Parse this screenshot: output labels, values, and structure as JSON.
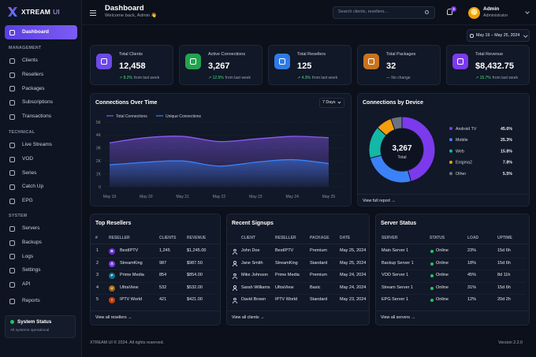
{
  "brand": {
    "name": "XTREAM",
    "suffix": "UI"
  },
  "nav": {
    "active": "Dashboard",
    "sections": [
      {
        "title": "MANAGEMENT",
        "items": [
          "Clients",
          "Resellers",
          "Packages",
          "Subscriptions",
          "Transactions"
        ]
      },
      {
        "title": "TECHNICAL",
        "items": [
          "Live Streams",
          "VOD",
          "Series",
          "Catch Up",
          "EPG"
        ]
      },
      {
        "title": "SYSTEM",
        "items": [
          "Servers",
          "Backups",
          "Logs",
          "Settings",
          "API"
        ]
      }
    ],
    "reports": "Reports"
  },
  "system_status": {
    "title": "System Status",
    "text": "All systems operational"
  },
  "header": {
    "title": "Dashboard",
    "subtitle": "Welcome back, Admin 👋",
    "search_placeholder": "Search clients, resellers...",
    "notifications": 3,
    "user": {
      "name": "Admin",
      "role": "Administrator"
    }
  },
  "date_range": "May 19 – May 25, 2024",
  "stats": [
    {
      "label": "Total Clients",
      "value": "12,458",
      "change": "↗ 8.2%",
      "note": "from last week",
      "color": "#6d4ae8"
    },
    {
      "label": "Active Connections",
      "value": "3,267",
      "change": "↗ 12.5%",
      "note": "from last week",
      "color": "#22a34f"
    },
    {
      "label": "Total Resellers",
      "value": "125",
      "change": "↗ 4.3%",
      "note": "from last week",
      "color": "#2f7be6"
    },
    {
      "label": "Total Packages",
      "value": "32",
      "change": "— No change",
      "color": "#c9731a"
    },
    {
      "label": "Total Revenue",
      "value": "$8,432.75",
      "change": "↗ 15.7%",
      "note": "from last week",
      "color": "#7c3aed"
    }
  ],
  "chart_data": [
    {
      "type": "line",
      "title": "Connections Over Time",
      "range_selector": "7 Days",
      "categories": [
        "May 19",
        "May 20",
        "May 21",
        "May 22",
        "May 23",
        "May 24",
        "May 25"
      ],
      "series": [
        {
          "name": "Total Connections",
          "color": "#8b5cf6",
          "values": [
            3400,
            3800,
            3900,
            3500,
            3700,
            3900,
            3800
          ]
        },
        {
          "name": "Unique Connections",
          "color": "#3b82f6",
          "values": [
            1700,
            1900,
            2000,
            1600,
            1900,
            2100,
            1800
          ]
        }
      ],
      "ylim": [
        0,
        5000
      ],
      "yticks": [
        0,
        {
          "value": 1000,
          "label": "1K"
        },
        {
          "value": 2000,
          "label": "2K"
        },
        {
          "value": 3000,
          "label": "3K"
        },
        {
          "value": 4000,
          "label": "4K"
        },
        {
          "value": 5000,
          "label": "5K"
        }
      ],
      "grid": true
    },
    {
      "type": "pie",
      "title": "Connections by Device",
      "categories": [
        "Android TV",
        "Mobile",
        "Web",
        "Enigma2",
        "Other"
      ],
      "values": [
        45.6,
        25.3,
        15.8,
        7.8,
        5.5
      ],
      "value_labels": [
        "45.6%",
        "25.3%",
        "15.8%",
        "7.8%",
        "5.5%"
      ],
      "colors": [
        "#7c3aed",
        "#3b82f6",
        "#14b8a6",
        "#f59e0b",
        "#6b7280"
      ],
      "center_value": "3,267",
      "center_label": "Total",
      "link": "View full report →"
    }
  ],
  "top_resellers": {
    "title": "Top Resellers",
    "columns": [
      "#",
      "RESELLER",
      "CLIENTS",
      "REVENUE"
    ],
    "rows": [
      {
        "rank": "1",
        "initial": "B",
        "color": "#6d28d9",
        "name": "BestIPTV",
        "clients": "1,245",
        "revenue": "$1,245.00"
      },
      {
        "rank": "2",
        "initial": "S",
        "color": "#7c3aed",
        "name": "StreamKing",
        "clients": "987",
        "revenue": "$987.50"
      },
      {
        "rank": "3",
        "initial": "P",
        "color": "#0e7490",
        "name": "Prime Media",
        "clients": "854",
        "revenue": "$854.00"
      },
      {
        "rank": "4",
        "initial": "U",
        "color": "#a16207",
        "name": "UltraView",
        "clients": "532",
        "revenue": "$532.00"
      },
      {
        "rank": "5",
        "initial": "I",
        "color": "#c2410c",
        "name": "IPTV World",
        "clients": "421",
        "revenue": "$421.00"
      }
    ],
    "link": "View all resellers →"
  },
  "recent_signups": {
    "title": "Recent Signups",
    "columns": [
      "CLIENT",
      "RESELLER",
      "PACKAGE",
      "DATE"
    ],
    "rows": [
      [
        "John Doe",
        "BestIPTV",
        "Premium",
        "May 25, 2024"
      ],
      [
        "Jane Smith",
        "StreamKing",
        "Standard",
        "May 25, 2024"
      ],
      [
        "Mike Johnson",
        "Prime Media",
        "Premium",
        "May 24, 2024"
      ],
      [
        "Sarah Williams",
        "UltraView",
        "Basic",
        "May 24, 2024"
      ],
      [
        "David Brown",
        "IPTV World",
        "Standard",
        "May 23, 2024"
      ]
    ],
    "link": "View all clients →"
  },
  "server_status": {
    "title": "Server Status",
    "columns": [
      "SERVER",
      "STATUS",
      "LOAD",
      "UPTIME"
    ],
    "rows": [
      [
        "Main Server 1",
        "Online",
        "23%",
        "15d 6h"
      ],
      [
        "Backup Server 1",
        "Online",
        "18%",
        "15d 6h"
      ],
      [
        "VOD Server 1",
        "Online",
        "45%",
        "8d 11h"
      ],
      [
        "Stream Server 1",
        "Online",
        "31%",
        "15d 6h"
      ],
      [
        "EPG Server 1",
        "Online",
        "12%",
        "20d 2h"
      ]
    ],
    "link": "View all servers →"
  },
  "footer": {
    "copyright": "XTREAM UI © 2024. All rights reserved.",
    "version": "Version 2.2.0"
  }
}
